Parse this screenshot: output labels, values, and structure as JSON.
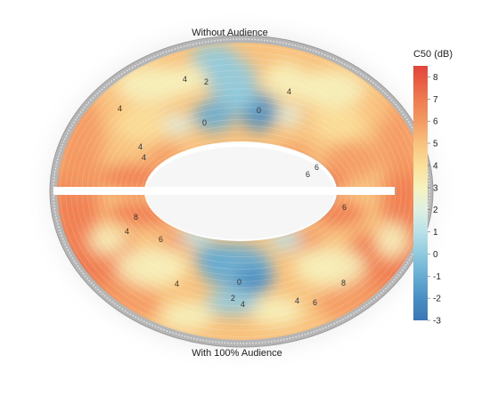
{
  "chart_data": {
    "type": "heatmap",
    "title": "",
    "top_label": "Without Audience",
    "bottom_label": "With 100% Audience",
    "colorbar": {
      "title": "C50 (dB)",
      "ticks": [
        8,
        7,
        6,
        5,
        4,
        3,
        2,
        1,
        0,
        -1,
        -2,
        -3
      ],
      "stops": [
        {
          "value": 8.5,
          "color": "#e2453a"
        },
        {
          "value": 8,
          "color": "#e8553f"
        },
        {
          "value": 7,
          "color": "#ef7a50"
        },
        {
          "value": 6,
          "color": "#f49a62"
        },
        {
          "value": 5,
          "color": "#f8c27e"
        },
        {
          "value": 4,
          "color": "#fadf9a"
        },
        {
          "value": 3,
          "color": "#f6f2bd"
        },
        {
          "value": 2,
          "color": "#dff0e3"
        },
        {
          "value": 1,
          "color": "#b9e1e8"
        },
        {
          "value": 0,
          "color": "#8ecadf"
        },
        {
          "value": -1,
          "color": "#66acd3"
        },
        {
          "value": -2,
          "color": "#4a8fc4"
        },
        {
          "value": -3,
          "color": "#3a76b6"
        }
      ],
      "range": [
        -3,
        8.5
      ]
    },
    "contour_labels_top": [
      "4",
      "2",
      "4",
      "0",
      "0",
      "4",
      "4",
      "6",
      "4",
      "6"
    ],
    "contour_labels_bottom": [
      "8",
      "4",
      "6",
      "4",
      "6",
      "2",
      "0",
      "4",
      "4",
      "6",
      "8"
    ]
  }
}
